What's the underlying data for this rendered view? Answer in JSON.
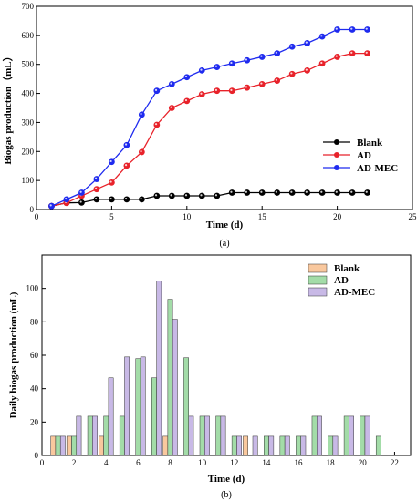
{
  "chart_data": [
    {
      "type": "line",
      "xlabel": "Time (d)",
      "ylabel": "Biogas production（mL）",
      "xlim": [
        0,
        25
      ],
      "ylim": [
        0,
        700
      ],
      "xticks": [
        0,
        5,
        10,
        15,
        20,
        25
      ],
      "yticks": [
        0,
        100,
        200,
        300,
        400,
        500,
        600,
        700
      ],
      "legend_position": "center-right",
      "x": [
        1,
        2,
        3,
        4,
        5,
        6,
        7,
        8,
        9,
        10,
        11,
        12,
        13,
        14,
        15,
        16,
        17,
        18,
        19,
        20,
        21,
        22
      ],
      "series": [
        {
          "name": "Blank",
          "color": "#000000",
          "values": [
            12,
            23,
            24,
            35,
            35,
            35,
            35,
            47,
            47,
            47,
            47,
            47,
            58,
            58,
            58,
            58,
            58,
            58,
            58,
            58,
            58,
            58
          ]
        },
        {
          "name": "AD",
          "color": "#e8222a",
          "values": [
            12,
            23,
            47,
            70,
            93,
            151,
            198,
            292,
            350,
            374,
            397,
            409,
            409,
            420,
            432,
            444,
            467,
            479,
            503,
            526,
            538,
            538
          ]
        },
        {
          "name": "AD-MEC",
          "color": "#1f2bef",
          "values": [
            12,
            35,
            58,
            105,
            164,
            222,
            327,
            409,
            432,
            456,
            479,
            491,
            503,
            514,
            526,
            538,
            561,
            573,
            596,
            620,
            620,
            620
          ]
        }
      ],
      "caption": "(a)"
    },
    {
      "type": "bar",
      "xlabel": "Time (d)",
      "ylabel": "Daily biogas production (mL)",
      "xlim": [
        0,
        23
      ],
      "ylim": [
        0,
        120
      ],
      "xticks": [
        0,
        2,
        4,
        6,
        8,
        10,
        12,
        14,
        16,
        18,
        20,
        22
      ],
      "yticks": [
        0,
        20,
        40,
        60,
        80,
        100
      ],
      "legend_position": "top-right",
      "x": [
        1,
        2,
        3,
        4,
        5,
        6,
        7,
        8,
        9,
        10,
        11,
        12,
        13,
        14,
        15,
        16,
        17,
        18,
        19,
        20,
        21
      ],
      "series": [
        {
          "name": "Blank",
          "color": "#f9c89e",
          "values": [
            11.5,
            11.5,
            0,
            11.5,
            0,
            0,
            0,
            11.5,
            0,
            0,
            0,
            0,
            11.5,
            0,
            0,
            0,
            0,
            0,
            0,
            0,
            0
          ]
        },
        {
          "name": "AD",
          "color": "#a3dca8",
          "values": [
            11.5,
            11.5,
            23.5,
            23.5,
            23.5,
            58,
            46.5,
            93.5,
            58.5,
            23.5,
            23.5,
            11.5,
            0,
            11.5,
            11.5,
            11.5,
            23.5,
            11.5,
            23.5,
            23.5,
            11.5
          ]
        },
        {
          "name": "AD-MEC",
          "color": "#c8b9e6",
          "values": [
            11.5,
            23.5,
            23.5,
            46.5,
            59,
            59,
            104.5,
            81.5,
            23.5,
            23.5,
            23.5,
            11.5,
            11.5,
            11.5,
            11.5,
            11.5,
            23.5,
            11.5,
            23.5,
            23.5,
            0
          ]
        }
      ],
      "caption": "(b)"
    }
  ]
}
